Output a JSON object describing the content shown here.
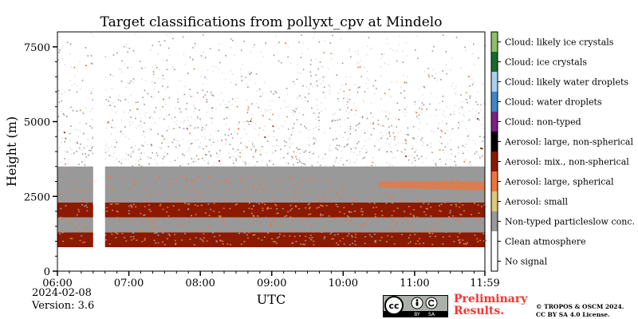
{
  "chart_data": {
    "type": "heatmap",
    "title": "Target classifications from pollyxt_cpv at Mindelo",
    "xlabel": "UTC",
    "ylabel": "Height (m)",
    "x_ticks": [
      "06:00",
      "07:00",
      "08:00",
      "09:00",
      "10:00",
      "11:00",
      "11:59"
    ],
    "y_ticks": [
      "0",
      "2500",
      "5000",
      "7500"
    ],
    "x_range": [
      "06:00",
      "11:59"
    ],
    "ylim": [
      0,
      8000
    ],
    "legend_placement": "right colorbar",
    "classes": [
      {
        "label": "No signal",
        "color": "#ffffff"
      },
      {
        "label": "Clean atmosphere",
        "color": "#ffffff"
      },
      {
        "label": "Non-typed particleslow conc.",
        "color": "#999999"
      },
      {
        "label": "Aerosol: small",
        "color": "#e0c77a"
      },
      {
        "label": "Aerosol: large, spherical",
        "color": "#f0743a"
      },
      {
        "label": "Aerosol: mix., non-spherical",
        "color": "#8b1a00"
      },
      {
        "label": "Aerosol: large, non-spherical",
        "color": "#000000"
      },
      {
        "label": "Cloud: non-typed",
        "color": "#7b2080"
      },
      {
        "label": "Cloud: water droplets",
        "color": "#3f87c7"
      },
      {
        "label": "Cloud: likely water droplets",
        "color": "#a9d0f0"
      },
      {
        "label": "Cloud: ice crystals",
        "color": "#1a6b2e"
      },
      {
        "label": "Cloud: likely ice crystals",
        "color": "#8fbf6a"
      }
    ],
    "layers": [
      {
        "class": "Aerosol: mix., non-spherical",
        "bottom_m": 800,
        "top_m": 1300
      },
      {
        "class": "Non-typed particleslow conc.",
        "bottom_m": 1300,
        "top_m": 1800
      },
      {
        "class": "Aerosol: mix., non-spherical",
        "bottom_m": 1800,
        "top_m": 2300
      },
      {
        "class": "Non-typed particleslow conc.",
        "bottom_m": 2300,
        "top_m": 3500
      }
    ],
    "data_gaps_utc": [
      [
        "06:30",
        "06:40"
      ]
    ]
  },
  "footer": {
    "date": "2024-02-08",
    "version": "Version: 3.6",
    "preliminary_line1": "Preliminary",
    "preliminary_line2": "Results.",
    "copyright_line1": "© TROPOS & OSCM 2024.",
    "copyright_line2": "CC BY SA 4.0 License."
  },
  "license_badge": {
    "icon": "cc-by-sa-icon",
    "text_cc": "cc",
    "text_by": "BY",
    "text_sa": "SA"
  }
}
